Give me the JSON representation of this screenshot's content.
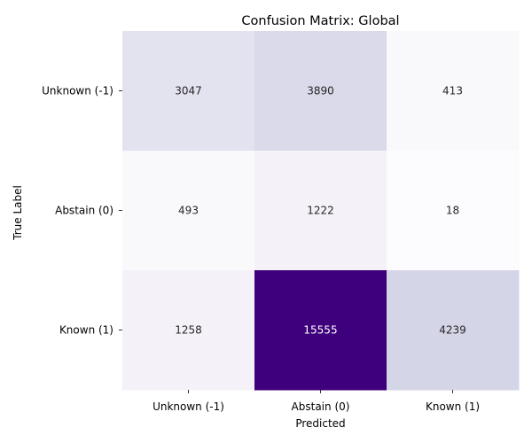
{
  "chart_data": {
    "type": "heatmap",
    "title": "Confusion Matrix: Global",
    "xlabel": "Predicted",
    "ylabel": "True Label",
    "x_categories": [
      "Unknown (-1)",
      "Abstain (0)",
      "Known (1)"
    ],
    "y_categories": [
      "Unknown (-1)",
      "Abstain (0)",
      "Known (1)"
    ],
    "values": [
      [
        3047,
        3890,
        413
      ],
      [
        493,
        1222,
        18
      ],
      [
        1258,
        15555,
        4239
      ]
    ],
    "colormap": "Purples",
    "color_low": "#fcfbfd",
    "color_high": "#3f007d",
    "colorbar": false
  }
}
